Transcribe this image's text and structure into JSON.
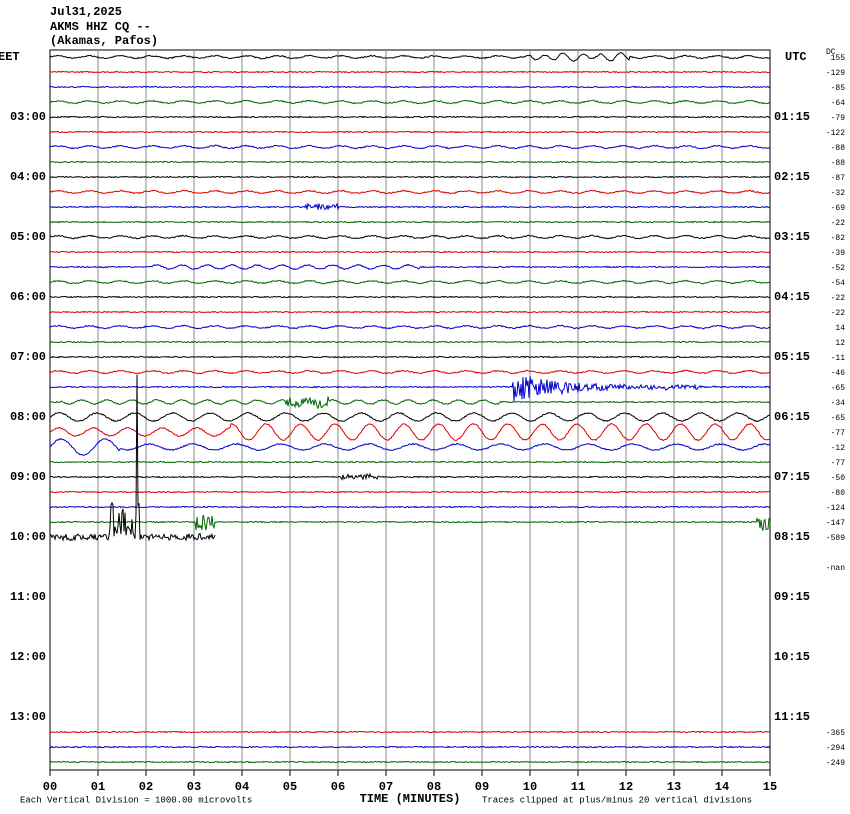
{
  "header": {
    "date": "Jul31,2025",
    "station": "AKMS HHZ CQ --",
    "location": "(Akamas, Pafos)"
  },
  "left_axis": {
    "title": "EET",
    "labels": [
      "03:00",
      "04:00",
      "05:00",
      "06:00",
      "07:00",
      "08:00",
      "09:00",
      "10:00",
      "11:00",
      "12:00",
      "13:00"
    ]
  },
  "right_axis": {
    "title": "UTC",
    "labels": [
      "01:15",
      "02:15",
      "03:15",
      "04:15",
      "05:15",
      "06:15",
      "07:15",
      "08:15",
      "09:15",
      "10:15",
      "11:15"
    ]
  },
  "dc_offsets": {
    "title": "DC",
    "labels": [
      "155",
      "-129",
      "-85",
      "-64",
      "-79",
      "-122",
      "-88",
      "-88",
      "-87",
      "-32",
      "-69",
      "-22",
      "-82",
      "-39",
      "-52",
      "-54",
      "-22",
      "-22",
      "14",
      "12",
      "-11",
      "-46",
      "-65",
      "-34",
      "-65",
      "-77",
      "-12",
      "-77",
      "-50",
      "-80",
      "-124",
      "-147",
      "-589",
      "-nan",
      "-365",
      "-294",
      "-249"
    ]
  },
  "x_axis": {
    "title": "TIME (MINUTES)",
    "ticks": [
      "00",
      "01",
      "02",
      "03",
      "04",
      "05",
      "06",
      "07",
      "08",
      "09",
      "10",
      "11",
      "12",
      "13",
      "14",
      "15"
    ]
  },
  "footer": {
    "scale_note": "Each Vertical Division = 1000.00 microvolts",
    "clip_note": "Traces clipped at plus/minus 20 vertical divisions"
  }
}
